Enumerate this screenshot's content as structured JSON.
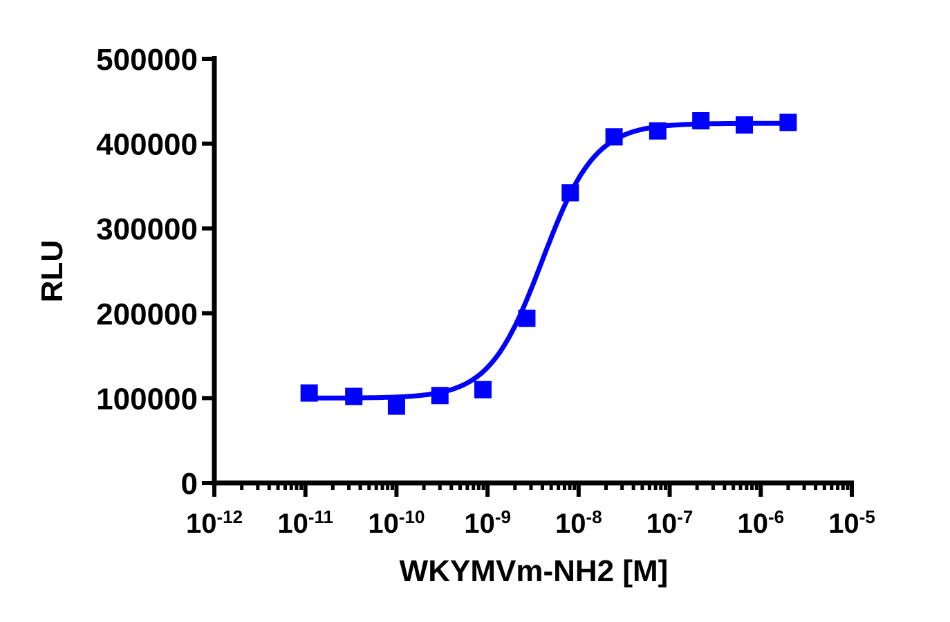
{
  "chart_data": {
    "type": "scatter",
    "title": "",
    "xlabel": "WKYMVm-NH2 [M]",
    "ylabel": "RLU",
    "xscale": "log",
    "xlim": [
      1e-12,
      1e-05
    ],
    "ylim": [
      0,
      500000
    ],
    "grid": false,
    "legend": null,
    "x_tick_labels": [
      {
        "base": "10",
        "exp": "-12"
      },
      {
        "base": "10",
        "exp": "-11"
      },
      {
        "base": "10",
        "exp": "-10"
      },
      {
        "base": "10",
        "exp": "-9"
      },
      {
        "base": "10",
        "exp": "-8"
      },
      {
        "base": "10",
        "exp": "-7"
      },
      {
        "base": "10",
        "exp": "-6"
      },
      {
        "base": "10",
        "exp": "-5"
      }
    ],
    "y_tick_labels": [
      "0",
      "100000",
      "200000",
      "300000",
      "400000",
      "500000"
    ],
    "series": [
      {
        "name": "WKYMVm-NH2",
        "color": "#0000ff",
        "marker": "square",
        "fit": "sigmoidal dose-response",
        "x": [
          1.1e-11,
          3.4e-11,
          1e-10,
          3e-10,
          8.9e-10,
          2.7e-09,
          8.1e-09,
          2.45e-08,
          7.4e-08,
          2.2e-07,
          6.6e-07,
          2e-06
        ],
        "values": [
          106000,
          102000,
          90500,
          103000,
          110000,
          194000,
          342000,
          408000,
          415000,
          427000,
          422000,
          425000
        ]
      }
    ],
    "fit_params": {
      "bottom": 100000,
      "top": 424000,
      "logEC50": -8.4,
      "hill": 1.5
    }
  }
}
